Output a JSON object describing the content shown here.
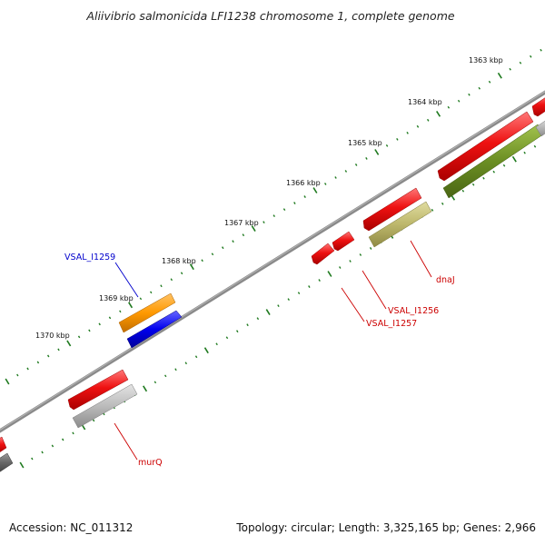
{
  "title": "Aliivibrio salmonicida LFI1238 chromosome 1, complete genome",
  "footer": {
    "accession": "Accession: NC_011312",
    "summary": "Topology: circular; Length: 3,325,165 bp; Genes: 2,966"
  },
  "ticks": [
    "1363 kbp",
    "1364 kbp",
    "1365 kbp",
    "1366 kbp",
    "1367 kbp",
    "1368 kbp",
    "1369 kbp",
    "1370 kbp"
  ],
  "gene_labels": {
    "vsal_i1259": "VSAL_I1259",
    "dnaj": "dnaJ",
    "vsal_i1256": "VSAL_I1256",
    "vsal_i1257": "VSAL_I1257",
    "murq": "murQ"
  },
  "colors": {
    "backbone": "#8a8a8a",
    "tick_mark": "#1f7a1f",
    "cds_red": "#ee1111",
    "orange": "#ff9900",
    "blue": "#0000ee",
    "olive": "#6b8e23",
    "khaki": "#bdb76b",
    "gray": "#bbbbbb",
    "blue_label": "#0000cc",
    "red_label": "#cc0000"
  }
}
